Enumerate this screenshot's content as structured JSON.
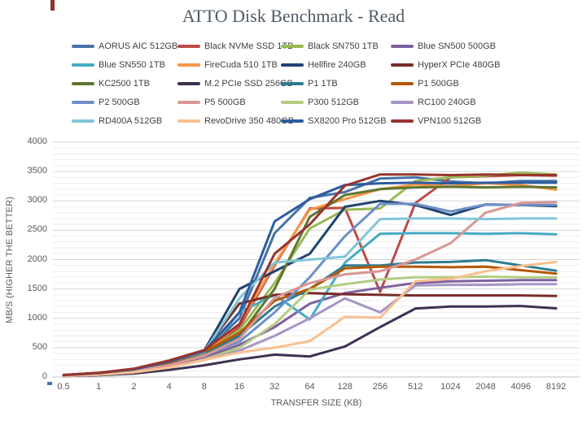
{
  "chart_data": {
    "type": "line",
    "title": "ATTO Disk Benchmark - Read",
    "xlabel": "TRANSFER SIZE (KB)",
    "ylabel": "MB/S (HIGHER THE BETTER)",
    "categories": [
      "0.5",
      "1",
      "2",
      "4",
      "8",
      "16",
      "32",
      "64",
      "128",
      "256",
      "512",
      "1024",
      "2048",
      "4096",
      "8192"
    ],
    "ylim": [
      0,
      4000
    ],
    "ytick_step": 500,
    "minor_grid_step": 100,
    "grid": "horizontal-only",
    "legend_position": "top",
    "series": [
      {
        "name": "AORUS AIC 512GB",
        "color": "#4573A7",
        "values": [
          30,
          60,
          115,
          230,
          430,
          1000,
          2450,
          3050,
          3150,
          3380,
          3400,
          3330,
          3300,
          3340,
          3340
        ]
      },
      {
        "name": "Black NVMe SSD 1TB",
        "color": "#BE4B48",
        "values": [
          30,
          65,
          130,
          260,
          420,
          850,
          1900,
          2870,
          2880,
          1450,
          2960,
          3400,
          3420,
          3440,
          3430
        ]
      },
      {
        "name": "Black SN750 1TB",
        "color": "#98B954",
        "values": [
          25,
          55,
          110,
          220,
          400,
          800,
          1600,
          2530,
          2850,
          2870,
          3340,
          3400,
          3430,
          3480,
          3450
        ]
      },
      {
        "name": "Blue SN500 500GB",
        "color": "#7D60A0",
        "values": [
          20,
          45,
          90,
          180,
          330,
          550,
          850,
          1250,
          1430,
          1520,
          1600,
          1630,
          1640,
          1650,
          1650
        ]
      },
      {
        "name": "Blue SN550 1TB",
        "color": "#46AAC5",
        "values": [
          25,
          50,
          100,
          200,
          380,
          1100,
          1400,
          980,
          1950,
          2440,
          2450,
          2450,
          2440,
          2450,
          2430
        ]
      },
      {
        "name": "FireCuda 510 1TB",
        "color": "#F79646",
        "values": [
          25,
          55,
          110,
          220,
          410,
          900,
          1930,
          2850,
          3030,
          3200,
          3280,
          3250,
          3300,
          3270,
          3190
        ]
      },
      {
        "name": "Hellfire 240GB",
        "color": "#1F4370",
        "values": [
          35,
          70,
          140,
          280,
          450,
          1500,
          1800,
          2100,
          2900,
          3000,
          2930,
          2760,
          2940,
          2930,
          2910
        ]
      },
      {
        "name": "HyperX PCIe 480GB",
        "color": "#782C28",
        "values": [
          35,
          70,
          140,
          280,
          450,
          1250,
          1400,
          1430,
          1410,
          1400,
          1390,
          1390,
          1390,
          1390,
          1380
        ]
      },
      {
        "name": "KC2500 1TB",
        "color": "#5F7530",
        "values": [
          30,
          60,
          120,
          240,
          420,
          700,
          1500,
          2730,
          3100,
          3200,
          3230,
          3240,
          3230,
          3240,
          3230
        ]
      },
      {
        "name": "M.2 PCIe SSD 256GB",
        "color": "#3F3151",
        "values": [
          15,
          30,
          60,
          120,
          200,
          300,
          380,
          350,
          520,
          850,
          1165,
          1200,
          1200,
          1210,
          1170
        ]
      },
      {
        "name": "P1 1TB",
        "color": "#2C7C91",
        "values": [
          25,
          50,
          100,
          200,
          370,
          700,
          1200,
          1500,
          1900,
          1900,
          1950,
          1960,
          1990,
          1900,
          1810
        ]
      },
      {
        "name": "P1 500GB",
        "color": "#B65708",
        "values": [
          30,
          60,
          120,
          240,
          430,
          750,
          1300,
          1500,
          1850,
          1880,
          1880,
          1870,
          1880,
          1820,
          1760
        ]
      },
      {
        "name": "P2 500GB",
        "color": "#6C8FC8",
        "values": [
          25,
          50,
          100,
          200,
          370,
          600,
          1100,
          1700,
          2400,
          2950,
          2950,
          2820,
          2940,
          2930,
          2930
        ]
      },
      {
        "name": "P5 500GB",
        "color": "#D99694",
        "values": [
          25,
          50,
          100,
          200,
          360,
          650,
          1350,
          1600,
          1750,
          1800,
          2000,
          2280,
          2800,
          2965,
          2980
        ]
      },
      {
        "name": "P300 512GB",
        "color": "#B3CC82",
        "values": [
          20,
          40,
          80,
          160,
          300,
          500,
          900,
          1490,
          1580,
          1660,
          1700,
          1700,
          1710,
          1700,
          1700
        ]
      },
      {
        "name": "RC100 240GB",
        "color": "#A695C5",
        "values": [
          20,
          40,
          80,
          160,
          290,
          450,
          700,
          1000,
          1340,
          1100,
          1560,
          1570,
          1570,
          1580,
          1580
        ]
      },
      {
        "name": "RD400A 512GB",
        "color": "#81C5D8",
        "values": [
          30,
          65,
          130,
          260,
          430,
          1340,
          1950,
          2000,
          2050,
          2690,
          2700,
          2700,
          2690,
          2700,
          2700
        ]
      },
      {
        "name": "RevoDrive 350 480GB",
        "color": "#FAC08F",
        "values": [
          20,
          40,
          80,
          160,
          290,
          420,
          500,
          610,
          1025,
          1010,
          1630,
          1670,
          1800,
          1890,
          1960
        ]
      },
      {
        "name": "SX8200 Pro 512GB",
        "color": "#2D5C9F",
        "values": [
          30,
          65,
          130,
          260,
          440,
          1100,
          2650,
          3030,
          3270,
          3300,
          3310,
          3300,
          3310,
          3310,
          3310
        ]
      },
      {
        "name": "VPN100 512GB",
        "color": "#99342F",
        "values": [
          35,
          70,
          140,
          280,
          460,
          900,
          2100,
          2600,
          3260,
          3450,
          3450,
          3440,
          3450,
          3440,
          3440
        ]
      }
    ]
  },
  "styles": {
    "title_color": "#505A68",
    "axis_text_color": "#595959",
    "legend_text_color": "#404040",
    "major_grid_color": "#D6D6D6",
    "minor_grid_color": "#EDEDED",
    "axis_line_color": "#BFBFBF"
  }
}
